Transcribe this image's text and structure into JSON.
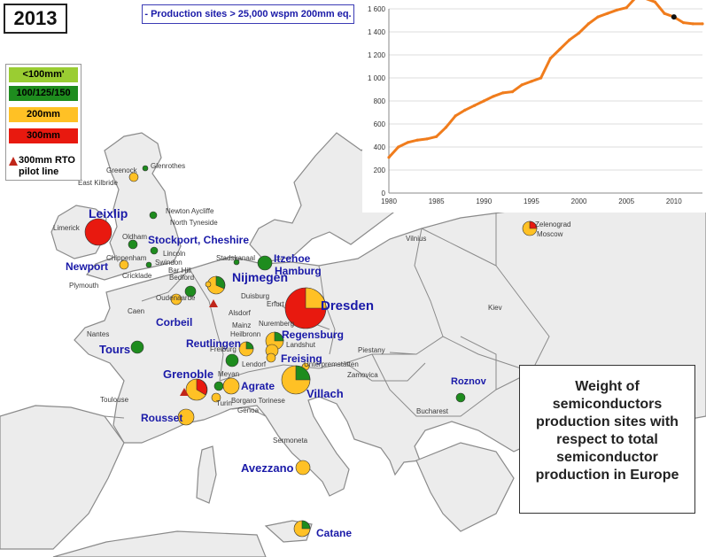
{
  "year_label": "2013",
  "subtitle": "- Production sites > 25,000 wspm 200mm eq.",
  "legend": {
    "items": [
      {
        "label": "<100mm'",
        "color": "#9acd32"
      },
      {
        "label": "100/125/150",
        "color": "#1e8c1e"
      },
      {
        "label": "200mm",
        "color": "#ffc125"
      },
      {
        "label": "300mm",
        "color": "#e8190f"
      }
    ],
    "rto_label": "300mm RTO pilot line"
  },
  "info_box": [
    "Weight of",
    "semiconductors",
    "production sites with",
    "respect to total",
    "semiconductor",
    "production in Europe"
  ],
  "colors": {
    "sea": "#ffffff",
    "land": "#ececec",
    "border": "#7a7a7a",
    "label_blue": "#1a1aa8",
    "chart_line": "#f07c1c"
  },
  "sites": [
    {
      "label": "Leixlip"
    },
    {
      "label": "Stockport, Cheshire"
    },
    {
      "label": "Newport"
    },
    {
      "label": "Itzehoe"
    },
    {
      "label": "Hamburg"
    },
    {
      "label": "Nijmegen"
    },
    {
      "label": "Dresden"
    },
    {
      "label": "Corbeil"
    },
    {
      "label": "Regensburg"
    },
    {
      "label": "Tours"
    },
    {
      "label": "Reutlingen"
    },
    {
      "label": "Freising"
    },
    {
      "label": "Grenoble"
    },
    {
      "label": "Agrate"
    },
    {
      "label": "Villach"
    },
    {
      "label": "Roznov"
    },
    {
      "label": "Rousset"
    },
    {
      "label": "Avezzano"
    },
    {
      "label": "Catane"
    }
  ],
  "places": [
    {
      "label": "Greenock"
    },
    {
      "label": "Glenrothes"
    },
    {
      "label": "East Kilbride"
    },
    {
      "label": "Newton Aycliffe"
    },
    {
      "label": "North Tyneside"
    },
    {
      "label": "Limerick"
    },
    {
      "label": "Oldham"
    },
    {
      "label": "Lincoln"
    },
    {
      "label": "Swindon"
    },
    {
      "label": "Chippenham"
    },
    {
      "label": "Bar Hill"
    },
    {
      "label": "Cricklade"
    },
    {
      "label": "Bedford"
    },
    {
      "label": "Plymouth"
    },
    {
      "label": "Stadskanaal"
    },
    {
      "label": "Oudenaarde"
    },
    {
      "label": "Duisburg"
    },
    {
      "label": "Erfurt"
    },
    {
      "label": "Caen"
    },
    {
      "label": "Alsdorf"
    },
    {
      "label": "Mainz"
    },
    {
      "label": "Heilbronn"
    },
    {
      "label": "Nuremberg"
    },
    {
      "label": "Nantes"
    },
    {
      "label": "Landshut"
    },
    {
      "label": "Freiburg"
    },
    {
      "label": "Unterpremstätten"
    },
    {
      "label": "Piestany"
    },
    {
      "label": "Meyan"
    },
    {
      "label": "Lendorf"
    },
    {
      "label": "Zamovica"
    },
    {
      "label": "Turin"
    },
    {
      "label": "Borgaro Torinese"
    },
    {
      "label": "Genoa"
    },
    {
      "label": "Toulouse"
    },
    {
      "label": "Bucharest"
    },
    {
      "label": "Sermoneta"
    },
    {
      "label": "Vilnius"
    },
    {
      "label": "Kiev"
    },
    {
      "label": "Zelenograd"
    },
    {
      "label": "Moscow"
    }
  ],
  "chart_data": {
    "type": "line",
    "x": [
      1980,
      1981,
      1982,
      1983,
      1984,
      1985,
      1986,
      1987,
      1988,
      1989,
      1990,
      1991,
      1992,
      1993,
      1994,
      1995,
      1996,
      1997,
      1998,
      1999,
      2000,
      2001,
      2002,
      2003,
      2004,
      2005,
      2006,
      2007,
      2008,
      2009,
      2010,
      2011,
      2012,
      2013
    ],
    "y": [
      310,
      400,
      440,
      460,
      470,
      490,
      570,
      670,
      720,
      760,
      800,
      840,
      870,
      880,
      940,
      970,
      1000,
      1170,
      1250,
      1330,
      1390,
      1470,
      1530,
      1560,
      1590,
      1610,
      1700,
      1690,
      1660,
      1560,
      1530,
      1480,
      1470,
      1470
    ],
    "xticks": [
      "1980",
      "1985",
      "1990",
      "1995",
      "2000",
      "2005",
      "2010"
    ],
    "yticks": [
      "0",
      "200",
      "400",
      "600",
      "800",
      "1 000",
      "1 200",
      "1 400",
      "1 600"
    ],
    "xlim": [
      1980,
      2013
    ],
    "ylim": [
      0,
      1600
    ],
    "highlight_x": 2010,
    "title": "",
    "xlabel": "",
    "ylabel": ""
  }
}
